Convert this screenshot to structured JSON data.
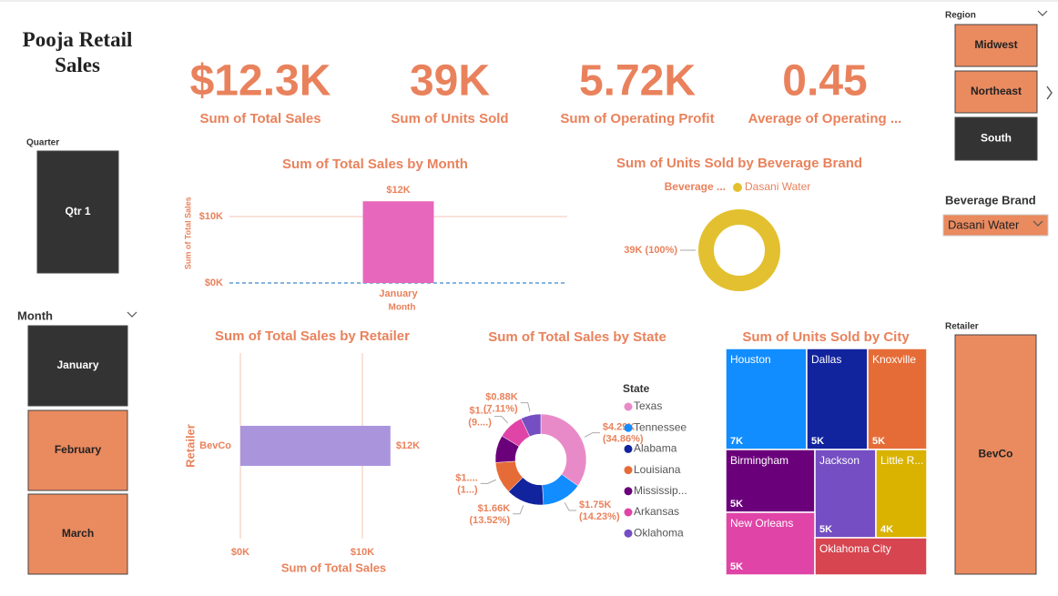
{
  "title": "Pooja Retail Sales",
  "cards": [
    {
      "value": "$12.3K",
      "label": "Sum of Total Sales"
    },
    {
      "value": "39K",
      "label": "Sum of Units Sold"
    },
    {
      "value": "5.72K",
      "label": "Sum of Operating Profit"
    },
    {
      "value": "0.45",
      "label": "Average of Operating ..."
    }
  ],
  "slicers": {
    "quarter": {
      "title": "Quarter",
      "items": [
        {
          "label": "Qtr 1",
          "selected": true
        }
      ]
    },
    "month": {
      "title": "Month",
      "items": [
        {
          "label": "January",
          "selected": true
        },
        {
          "label": "February",
          "selected": false
        },
        {
          "label": "March",
          "selected": false
        }
      ]
    },
    "region": {
      "title": "Region",
      "items": [
        {
          "label": "Midwest",
          "selected": false
        },
        {
          "label": "Northeast",
          "selected": false
        },
        {
          "label": "South",
          "selected": true
        }
      ]
    },
    "beverage_brand": {
      "title": "Beverage Brand",
      "value": "Dasani Water"
    },
    "retailer": {
      "title": "Retailer",
      "items": [
        {
          "label": "BevCo",
          "selected": false
        }
      ]
    }
  },
  "chart_data": [
    {
      "type": "bar",
      "orientation": "vertical",
      "title": "Sum of Total Sales by Month",
      "x_label": "Month",
      "y_label": "Sum of Total Sales",
      "categories": [
        "January"
      ],
      "values": [
        12300
      ],
      "value_labels": [
        "$12K"
      ],
      "color": "#e667bb",
      "ylim": [
        0,
        15000
      ],
      "yticks": [
        {
          "value": 0,
          "label": "$0K"
        },
        {
          "value": 10000,
          "label": "$10K"
        }
      ],
      "grid": true
    },
    {
      "type": "pie",
      "hole": true,
      "title": "Sum of Units Sold by Beverage Brand",
      "legend_title": "Beverage ...",
      "legend": "top",
      "categories": [
        "Dasani Water"
      ],
      "values": [
        39000
      ],
      "value_labels": [
        "39K (100%)"
      ],
      "colors": [
        "#e3c02f"
      ]
    },
    {
      "type": "bar",
      "orientation": "horizontal",
      "title": "Sum of Total Sales by Retailer",
      "x_label": "Sum of Total Sales",
      "y_label": "Retailer",
      "categories": [
        "BevCo"
      ],
      "values": [
        12300
      ],
      "value_labels": [
        "$12K"
      ],
      "color": "#aa95dd",
      "xlim": [
        0,
        15000
      ],
      "xticks": [
        {
          "value": 0,
          "label": "$0K"
        },
        {
          "value": 10000,
          "label": "$10K"
        }
      ],
      "grid": true
    },
    {
      "type": "pie",
      "hole": true,
      "title": "Sum of Total Sales by State",
      "legend_title": "State",
      "legend": "right",
      "categories": [
        "Texas",
        "Tennessee",
        "Alabama",
        "Louisiana",
        "Mississip...",
        "Arkansas",
        "Oklahoma"
      ],
      "values": [
        4290,
        1750,
        1660,
        1400,
        1200,
        1130,
        880
      ],
      "value_labels": [
        "$4.29K (34.86%)",
        "$1.75K (14.23%)",
        "$1.66K (13.52%)",
        "$1.... (1...)",
        null,
        "$1.... (9....)",
        "$0.88K (7.11%)"
      ],
      "colors": [
        "#e98ac8",
        "#118dff",
        "#12239e",
        "#e66c37",
        "#6b007b",
        "#e044a7",
        "#744ec2"
      ]
    },
    {
      "type": "treemap",
      "title": "Sum of Units Sold by City",
      "categories": [
        "Houston",
        "Dallas",
        "Knoxville",
        "Birmingham",
        "Jackson",
        "Little R...",
        "New Orleans",
        "Oklahoma City"
      ],
      "values": [
        7000,
        5000,
        5000,
        5000,
        5000,
        4000,
        5000,
        3000
      ],
      "value_labels": [
        "7K",
        "5K",
        "5K",
        "5K",
        "5K",
        "4K",
        "5K",
        null
      ],
      "colors": [
        "#118dff",
        "#12239e",
        "#e66c37",
        "#6b007b",
        "#744ec2",
        "#d9b300",
        "#e044a7",
        "#d64550"
      ]
    }
  ]
}
